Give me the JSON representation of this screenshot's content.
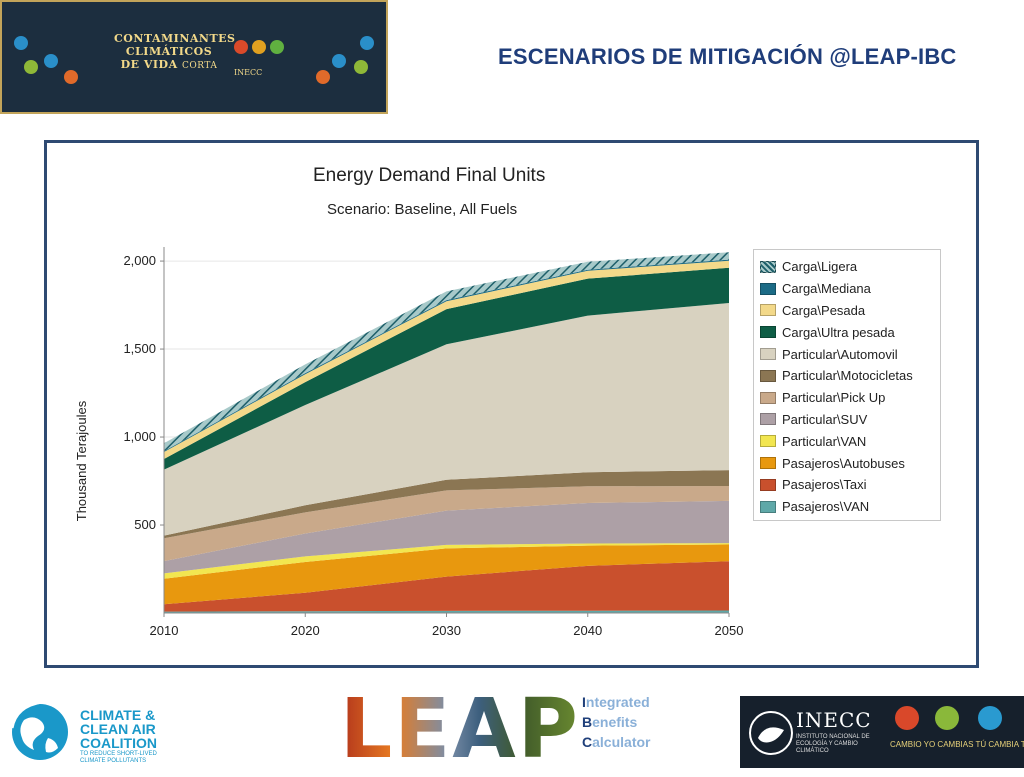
{
  "header": {
    "banner_title_line1": "CONTAMINANTES",
    "banner_title_line2": "CLIMÁTICOS",
    "banner_title_line3": "DE VIDA",
    "banner_title_line3b": "CORTA",
    "banner_org": "INECC",
    "slide_title": "ESCENARIOS DE MITIGACIÓN @LEAP-IBC"
  },
  "chart_data": {
    "type": "area",
    "title": "Energy Demand Final Units",
    "subtitle": "Scenario: Baseline, All Fuels",
    "xlabel": "",
    "ylabel": "Thousand Terajoules",
    "x": [
      2010,
      2020,
      2030,
      2040,
      2050
    ],
    "x_ticks": [
      "2010",
      "2020",
      "2030",
      "2040",
      "2050"
    ],
    "y_ticks": [
      500,
      1000,
      1500,
      2000
    ],
    "y_tick_labels": [
      "500",
      "1,000",
      "1,500",
      "2,000"
    ],
    "ylim": [
      0,
      2080
    ],
    "stacked": true,
    "legend_position": "right",
    "series": [
      {
        "name": "Pasajeros\\VAN",
        "color": "#5fa8a8",
        "values": [
          8,
          10,
          12,
          13,
          14
        ]
      },
      {
        "name": "Pasajeros\\Taxi",
        "color": "#c9502d",
        "values": [
          42,
          105,
          195,
          255,
          280
        ]
      },
      {
        "name": "Pasajeros\\Autobuses",
        "color": "#e8980e",
        "values": [
          145,
          175,
          160,
          115,
          95
        ]
      },
      {
        "name": "Particular\\VAN",
        "color": "#f2e650",
        "values": [
          30,
          32,
          20,
          12,
          8
        ]
      },
      {
        "name": "Particular\\SUV",
        "color": "#ada0a6",
        "values": [
          70,
          130,
          195,
          230,
          240
        ]
      },
      {
        "name": "Particular\\Pick Up",
        "color": "#c9a98a",
        "values": [
          130,
          120,
          115,
          95,
          85
        ]
      },
      {
        "name": "Particular\\Motocicletas",
        "color": "#8b7653",
        "values": [
          15,
          40,
          60,
          80,
          90
        ]
      },
      {
        "name": "Particular\\Automovil",
        "color": "#d8d2c0",
        "values": [
          375,
          570,
          770,
          890,
          950
        ]
      },
      {
        "name": "Carga\\Ultra pesada",
        "color": "#0e5d45",
        "values": [
          60,
          130,
          200,
          210,
          200
        ]
      },
      {
        "name": "Carga\\Pesada",
        "color": "#f3d98a",
        "values": [
          40,
          45,
          45,
          45,
          40
        ]
      },
      {
        "name": "Carga\\Mediana",
        "color": "#1c6b86",
        "values": [
          5,
          6,
          6,
          6,
          6
        ]
      },
      {
        "name": "Carga\\Ligera",
        "color": "#7aa8a8",
        "pattern": "hatch",
        "values": [
          45,
          50,
          50,
          45,
          42
        ]
      }
    ],
    "legend_order": [
      "Carga\\Ligera",
      "Carga\\Mediana",
      "Carga\\Pesada",
      "Carga\\Ultra pesada",
      "Particular\\Automovil",
      "Particular\\Motocicletas",
      "Particular\\Pick Up",
      "Particular\\SUV",
      "Particular\\VAN",
      "Pasajeros\\Autobuses",
      "Pasajeros\\Taxi",
      "Pasajeros\\VAN"
    ]
  },
  "footer": {
    "ccac_line1": "CLIMATE &",
    "ccac_line2": "CLEAN AIR",
    "ccac_line3": "COALITION",
    "ccac_small": "TO REDUCE SHORT-LIVED CLIMATE POLLUTANTS",
    "leap_word": "LEAP",
    "ibc_1_initial": "I",
    "ibc_1_rest": "ntegrated",
    "ibc_2_initial": "B",
    "ibc_2_rest": "enefits",
    "ibc_3_initial": "C",
    "ibc_3_rest": "alculator",
    "inecc_name": "INECC",
    "inecc_sub": "INSTITUTO NACIONAL DE ECOLOGÍA Y CAMBIO CLIMÁTICO",
    "inecc_slogan": "CAMBIO YO  CAMBIAS TÚ  CAMBIA TODO"
  }
}
